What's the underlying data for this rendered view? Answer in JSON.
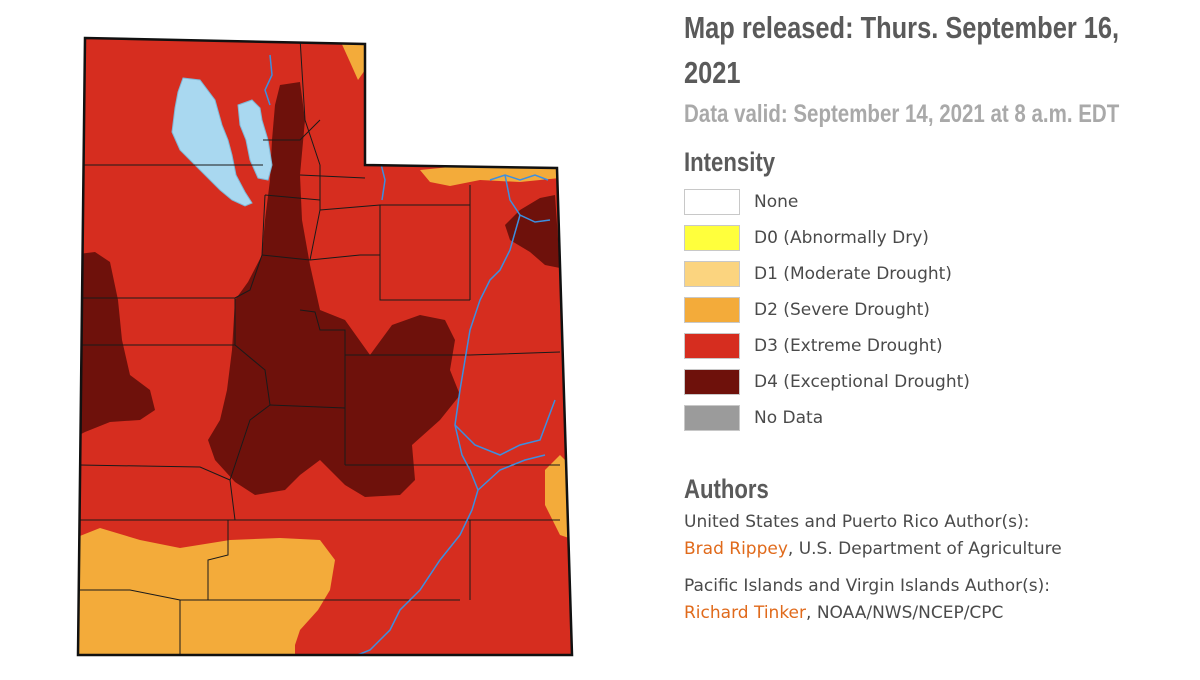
{
  "header": {
    "released": "Map released: Thurs. September 16, 2021",
    "valid": "Data valid: September 14, 2021 at 8 a.m. EDT"
  },
  "legend": {
    "title": "Intensity",
    "items": [
      {
        "label": "None",
        "color": "#ffffff"
      },
      {
        "label": "D0 (Abnormally Dry)",
        "color": "#ffff3c"
      },
      {
        "label": "D1 (Moderate Drought)",
        "color": "#fbd47f"
      },
      {
        "label": "D2 (Severe Drought)",
        "color": "#f3ab3a"
      },
      {
        "label": "D3 (Extreme Drought)",
        "color": "#d62d1f"
      },
      {
        "label": "D4 (Exceptional Drought)",
        "color": "#6e110b"
      },
      {
        "label": "No Data",
        "color": "#9b9b9b"
      }
    ]
  },
  "authors": {
    "title": "Authors",
    "us_heading": "United States and Puerto Rico Author(s):",
    "us_name": "Brad Rippey",
    "us_org": ", U.S. Department of Agriculture",
    "pacific_heading": "Pacific Islands and Virgin Islands Author(s):",
    "pacific_name": "Richard Tinker",
    "pacific_org": ", NOAA/NWS/NCEP/CPC"
  },
  "map": {
    "colors": {
      "d2": "#f3ab3a",
      "d3": "#d62d1f",
      "d4": "#6e110b",
      "lake": "#a9d8f0",
      "river": "#3d8fe0",
      "county": "#1a1a1a"
    }
  }
}
